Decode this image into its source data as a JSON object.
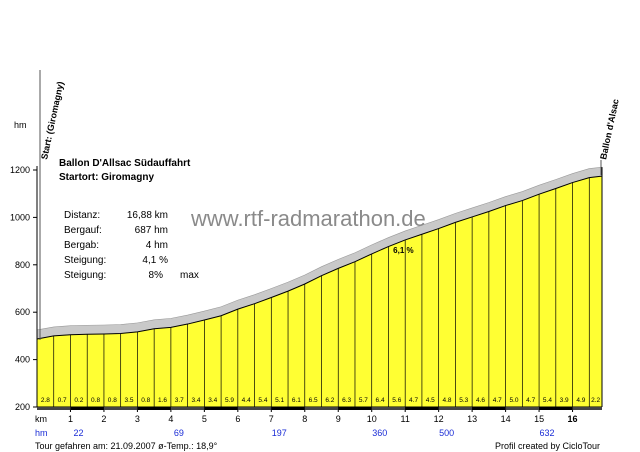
{
  "chart_data": {
    "type": "area",
    "y_unit": "hm",
    "x_unit": "km",
    "ylim": [
      200,
      1200
    ],
    "xlim": [
      0,
      16.88
    ],
    "y_ticks": [
      200,
      400,
      600,
      800,
      1000,
      1200
    ],
    "x_ticks": [
      "1",
      "2",
      "3",
      "4",
      "5",
      "6",
      "7",
      "8",
      "9",
      "10",
      "11",
      "12",
      "13",
      "14",
      "15",
      "16"
    ],
    "grid": false,
    "profile": [
      {
        "km": 0.0,
        "elev": 487
      },
      {
        "km": 0.5,
        "elev": 500
      },
      {
        "km": 1.0,
        "elev": 505
      },
      {
        "km": 1.5,
        "elev": 507
      },
      {
        "km": 2.0,
        "elev": 508
      },
      {
        "km": 2.5,
        "elev": 510
      },
      {
        "km": 3.0,
        "elev": 517
      },
      {
        "km": 3.5,
        "elev": 530
      },
      {
        "km": 4.0,
        "elev": 536
      },
      {
        "km": 4.5,
        "elev": 550
      },
      {
        "km": 5.0,
        "elev": 567
      },
      {
        "km": 5.5,
        "elev": 585
      },
      {
        "km": 6.0,
        "elev": 613
      },
      {
        "km": 6.5,
        "elev": 636
      },
      {
        "km": 7.0,
        "elev": 662
      },
      {
        "km": 7.5,
        "elev": 689
      },
      {
        "km": 8.0,
        "elev": 719
      },
      {
        "km": 8.5,
        "elev": 754
      },
      {
        "km": 9.0,
        "elev": 785
      },
      {
        "km": 9.5,
        "elev": 813
      },
      {
        "km": 10.0,
        "elev": 846
      },
      {
        "km": 10.5,
        "elev": 877
      },
      {
        "km": 11.0,
        "elev": 905
      },
      {
        "km": 11.5,
        "elev": 929
      },
      {
        "km": 12.0,
        "elev": 953
      },
      {
        "km": 12.5,
        "elev": 979
      },
      {
        "km": 13.0,
        "elev": 1002
      },
      {
        "km": 13.5,
        "elev": 1025
      },
      {
        "km": 14.0,
        "elev": 1050
      },
      {
        "km": 14.5,
        "elev": 1071
      },
      {
        "km": 15.0,
        "elev": 1098
      },
      {
        "km": 15.5,
        "elev": 1122
      },
      {
        "km": 16.0,
        "elev": 1147
      },
      {
        "km": 16.5,
        "elev": 1168
      },
      {
        "km": 16.88,
        "elev": 1174
      }
    ],
    "gradients": [
      "2.8",
      "0.7",
      "0.2",
      "0.8",
      "0.8",
      "3.5",
      "0.8",
      "1.6",
      "3.7",
      "3.4",
      "3.4",
      "5.9",
      "4.4",
      "5.4",
      "5.1",
      "6.1",
      "6.5",
      "6.2",
      "6.3",
      "5.7",
      "6.4",
      "5.6",
      "4.7",
      "4.5",
      "4.8",
      "5.3",
      "4.6",
      "4.7",
      "5.0",
      "4.7",
      "5.4",
      "3.9",
      "4.9",
      "2.2"
    ],
    "distance_markers": [
      {
        "km": 1.0,
        "value": "22"
      },
      {
        "km": 4.0,
        "value": "69"
      },
      {
        "km": 7.0,
        "value": "197"
      },
      {
        "km": 10.0,
        "value": "360"
      },
      {
        "km": 12.0,
        "value": "500"
      },
      {
        "km": 15.0,
        "value": "632"
      }
    ],
    "inline_label": {
      "km": 11.0,
      "text": "6,1 %"
    },
    "colors": {
      "fill": "#ffff33",
      "ridge": "#c9c9c9",
      "outline": "#000000",
      "blue": "#1a2cd6"
    }
  },
  "labels": {
    "y_unit": "hm",
    "x_unit": "km",
    "hm_row_label": "hm",
    "start": "Start: (Giromagny)",
    "end": "Ballon d'Alsac",
    "title": "Ballon D'Allsac  Südauffahrt",
    "subtitle": "Startort: Giromagny",
    "watermark": "www.rtf-radmarathon.de",
    "footer_left": "Tour gefahren am: 21.09.2007   ø-Temp.: 18,9°",
    "footer_right": "Profil created by CicloTour"
  },
  "stats": [
    {
      "label": "Distanz:",
      "value": "16,88 km",
      "extra": ""
    },
    {
      "label": "Bergauf:",
      "value": "687 hm",
      "extra": ""
    },
    {
      "label": "Bergab:",
      "value": "4 hm",
      "extra": ""
    },
    {
      "label": "Steigung:",
      "value": "4,1 %",
      "extra": ""
    },
    {
      "label": "Steigung:",
      "value": "8%",
      "extra": "max"
    }
  ]
}
